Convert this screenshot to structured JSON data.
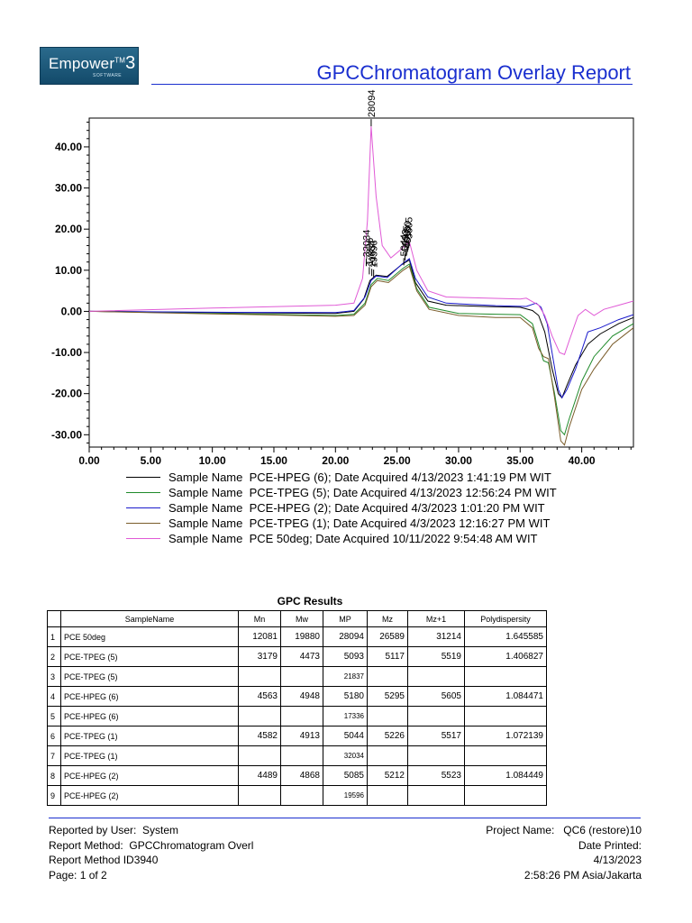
{
  "header": {
    "logo_text": "Empower",
    "logo_sup": "TM",
    "logo_version": "3",
    "logo_sub": "SOFTWARE",
    "title": "GPCChromatogram Overlay Report"
  },
  "chart_data": {
    "type": "line",
    "title": "",
    "xlabel": "",
    "ylabel": "",
    "xlim": [
      0,
      44.2
    ],
    "ylim": [
      -33,
      47
    ],
    "x_ticks": [
      "0.00",
      "5.00",
      "10.00",
      "15.00",
      "20.00",
      "25.00",
      "30.00",
      "35.00",
      "40.00"
    ],
    "y_ticks": [
      "40.00",
      "30.00",
      "20.00",
      "10.00",
      "0.00",
      "-10.00",
      "-20.00",
      "-30.00"
    ],
    "grid": false,
    "legend_position": "bottom",
    "series": [
      {
        "name": "Sample Name  PCE-HPEG (6); Date Acquired 4/13/2023 1:41:19 PM WIT",
        "color": "#000000",
        "points": [
          [
            0,
            0
          ],
          [
            10,
            -0.3
          ],
          [
            20,
            -0.5
          ],
          [
            21.5,
            0
          ],
          [
            22.3,
            3
          ],
          [
            22.8,
            7.5
          ],
          [
            23.3,
            8.8
          ],
          [
            24.2,
            8.5
          ],
          [
            25.4,
            11.4
          ],
          [
            26,
            12.5
          ],
          [
            26.5,
            7
          ],
          [
            27.5,
            2.5
          ],
          [
            29,
            1.5
          ],
          [
            32,
            1.2
          ],
          [
            35,
            1
          ],
          [
            36,
            0.2
          ],
          [
            36.5,
            -1
          ],
          [
            37,
            -5
          ],
          [
            37.6,
            -14
          ],
          [
            38.1,
            -20
          ],
          [
            38.4,
            -21
          ],
          [
            38.8,
            -18
          ],
          [
            39.5,
            -13
          ],
          [
            40.5,
            -8
          ],
          [
            41.5,
            -5.5
          ],
          [
            43,
            -3
          ],
          [
            44.2,
            -1.5
          ]
        ]
      },
      {
        "name": "Sample Name  PCE-TPEG (5); Date Acquired 4/13/2023 12:56:24 PM WIT",
        "color": "#1f8a2a",
        "points": [
          [
            0,
            0
          ],
          [
            10,
            -0.5
          ],
          [
            20,
            -1
          ],
          [
            21.5,
            -0.7
          ],
          [
            22.4,
            2
          ],
          [
            22.9,
            6.5
          ],
          [
            23.4,
            8
          ],
          [
            24.3,
            7.5
          ],
          [
            25.5,
            10.5
          ],
          [
            26,
            11.5
          ],
          [
            26.6,
            5.5
          ],
          [
            27.6,
            1
          ],
          [
            30,
            -0.5
          ],
          [
            33,
            -0.7
          ],
          [
            35,
            -0.8
          ],
          [
            36,
            -3
          ],
          [
            36.5,
            -8
          ],
          [
            36.9,
            -12
          ],
          [
            37.3,
            -12.5
          ],
          [
            37.8,
            -20
          ],
          [
            38.3,
            -29
          ],
          [
            38.6,
            -30
          ],
          [
            39,
            -26
          ],
          [
            40,
            -17
          ],
          [
            41,
            -11
          ],
          [
            42.5,
            -6
          ],
          [
            44.2,
            -3
          ]
        ]
      },
      {
        "name": "Sample Name  PCE-HPEG (2); Date Acquired 4/3/2023 1:01:20 PM WIT",
        "color": "#1a1acc",
        "points": [
          [
            0,
            0
          ],
          [
            10,
            -0.2
          ],
          [
            20,
            -0.3
          ],
          [
            21.5,
            0.2
          ],
          [
            22.4,
            3.5
          ],
          [
            22.9,
            7.5
          ],
          [
            23.3,
            8.6
          ],
          [
            24.2,
            8.2
          ],
          [
            25.4,
            11.5
          ],
          [
            26,
            12.8
          ],
          [
            26.5,
            8
          ],
          [
            27.5,
            3.5
          ],
          [
            29,
            2
          ],
          [
            33,
            1.4
          ],
          [
            35.5,
            1.2
          ],
          [
            36.3,
            2
          ],
          [
            36.7,
            1
          ],
          [
            37.2,
            -3
          ],
          [
            37.7,
            -12
          ],
          [
            38.1,
            -19
          ],
          [
            38.4,
            -21
          ],
          [
            38.8,
            -19
          ],
          [
            39.5,
            -14
          ],
          [
            40.5,
            -5
          ],
          [
            41.5,
            -4
          ],
          [
            43,
            -2
          ],
          [
            44.2,
            -0.8
          ]
        ]
      },
      {
        "name": "Sample Name  PCE-TPEG (1); Date Acquired 4/3/2023 12:16:27 PM WIT",
        "color": "#7a5c2a",
        "points": [
          [
            0,
            0
          ],
          [
            10,
            -0.6
          ],
          [
            20,
            -1.2
          ],
          [
            21.5,
            -1
          ],
          [
            22.4,
            1.5
          ],
          [
            22.9,
            6
          ],
          [
            23.4,
            7.5
          ],
          [
            24.3,
            7
          ],
          [
            25.5,
            10
          ],
          [
            26,
            11
          ],
          [
            26.6,
            5
          ],
          [
            27.6,
            0.5
          ],
          [
            30,
            -1
          ],
          [
            33,
            -1.5
          ],
          [
            35,
            -1.5
          ],
          [
            36,
            -4
          ],
          [
            36.5,
            -9
          ],
          [
            36.9,
            -11
          ],
          [
            37.3,
            -11.5
          ],
          [
            37.8,
            -21
          ],
          [
            38.3,
            -31.5
          ],
          [
            38.6,
            -32.5
          ],
          [
            39,
            -28
          ],
          [
            40,
            -19
          ],
          [
            41,
            -14
          ],
          [
            42.5,
            -8
          ],
          [
            44.2,
            -4
          ]
        ]
      },
      {
        "name": "Sample Name  PCE 50deg; Date Acquired 10/11/2022 9:54:48 AM WIT",
        "color": "#e05ad6",
        "points": [
          [
            0,
            0
          ],
          [
            10,
            0.8
          ],
          [
            20,
            1.5
          ],
          [
            21.5,
            2
          ],
          [
            22.2,
            8
          ],
          [
            22.6,
            22
          ],
          [
            22.9,
            45
          ],
          [
            23.3,
            28
          ],
          [
            23.8,
            16
          ],
          [
            24.5,
            13
          ],
          [
            25.3,
            15
          ],
          [
            26,
            17
          ],
          [
            26.6,
            10
          ],
          [
            27.5,
            5
          ],
          [
            29,
            3.5
          ],
          [
            35,
            3
          ],
          [
            35.5,
            3.2
          ],
          [
            36.5,
            1.5
          ],
          [
            37,
            -1
          ],
          [
            37.6,
            -6
          ],
          [
            38.2,
            -10
          ],
          [
            38.6,
            -10.5
          ],
          [
            39,
            -7
          ],
          [
            39.7,
            -1
          ],
          [
            40.3,
            0.5
          ],
          [
            41,
            -1
          ],
          [
            41.8,
            0.5
          ],
          [
            43,
            1.5
          ],
          [
            44.2,
            2.5
          ]
        ]
      }
    ],
    "peak_labels": [
      {
        "text": "28094",
        "x": 22.9,
        "y": 45
      },
      {
        "text": "32034",
        "x": 22.5,
        "y": 11
      },
      {
        "text": "17336",
        "x": 22.75,
        "y": 9
      },
      {
        "text": "21837",
        "x": 22.95,
        "y": 8.6
      },
      {
        "text": "19596",
        "x": 23.1,
        "y": 8.4
      },
      {
        "text": "5044",
        "x": 25.55,
        "y": 11.2
      },
      {
        "text": "5093",
        "x": 25.65,
        "y": 12.4
      },
      {
        "text": "5085",
        "x": 25.75,
        "y": 13.4
      },
      {
        "text": "5180",
        "x": 25.85,
        "y": 14.4
      },
      {
        "text": "5605",
        "x": 25.95,
        "y": 15.4
      }
    ]
  },
  "table": {
    "title": "GPC Results",
    "headers": [
      "",
      "SampleName",
      "Mn",
      "Mw",
      "MP",
      "Mz",
      "Mz+1",
      "Polydispersity"
    ],
    "rows": [
      {
        "idx": "1",
        "name": "PCE 50deg",
        "mn": "12081",
        "mw": "19880",
        "mp": "28094",
        "mz": "26589",
        "mz1": "31214",
        "pd": "1.645585"
      },
      {
        "idx": "2",
        "name": "PCE-TPEG (5)",
        "mn": "3179",
        "mw": "4473",
        "mp": "5093",
        "mz": "5117",
        "mz1": "5519",
        "pd": "1.406827"
      },
      {
        "idx": "3",
        "name": "PCE-TPEG (5)",
        "mn": "",
        "mw": "",
        "mp": "21837",
        "mz": "",
        "mz1": "",
        "pd": ""
      },
      {
        "idx": "4",
        "name": "PCE-HPEG (6)",
        "mn": "4563",
        "mw": "4948",
        "mp": "5180",
        "mz": "5295",
        "mz1": "5605",
        "pd": "1.084471"
      },
      {
        "idx": "5",
        "name": "PCE-HPEG (6)",
        "mn": "",
        "mw": "",
        "mp": "17336",
        "mz": "",
        "mz1": "",
        "pd": ""
      },
      {
        "idx": "6",
        "name": "PCE-TPEG (1)",
        "mn": "4582",
        "mw": "4913",
        "mp": "5044",
        "mz": "5226",
        "mz1": "5517",
        "pd": "1.072139"
      },
      {
        "idx": "7",
        "name": "PCE-TPEG (1)",
        "mn": "",
        "mw": "",
        "mp": "32034",
        "mz": "",
        "mz1": "",
        "pd": ""
      },
      {
        "idx": "8",
        "name": "PCE-HPEG (2)",
        "mn": "4489",
        "mw": "4868",
        "mp": "5085",
        "mz": "5212",
        "mz1": "5523",
        "pd": "1.084449"
      },
      {
        "idx": "9",
        "name": "PCE-HPEG (2)",
        "mn": "",
        "mw": "",
        "mp": "19596",
        "mz": "",
        "mz1": "",
        "pd": ""
      }
    ]
  },
  "footer": {
    "reported_by": "Reported by User:  System",
    "report_method": "Report Method:  GPCChromatogram Overl",
    "report_method_id": "Report Method ID3940",
    "page": "Page: 1 of 2",
    "project_name": "Project Name:   QC6 (restore)10",
    "date_printed_label": "Date Printed:",
    "date_printed": "4/13/2023",
    "time_printed": "2:58:26 PM Asia/Jakarta"
  }
}
